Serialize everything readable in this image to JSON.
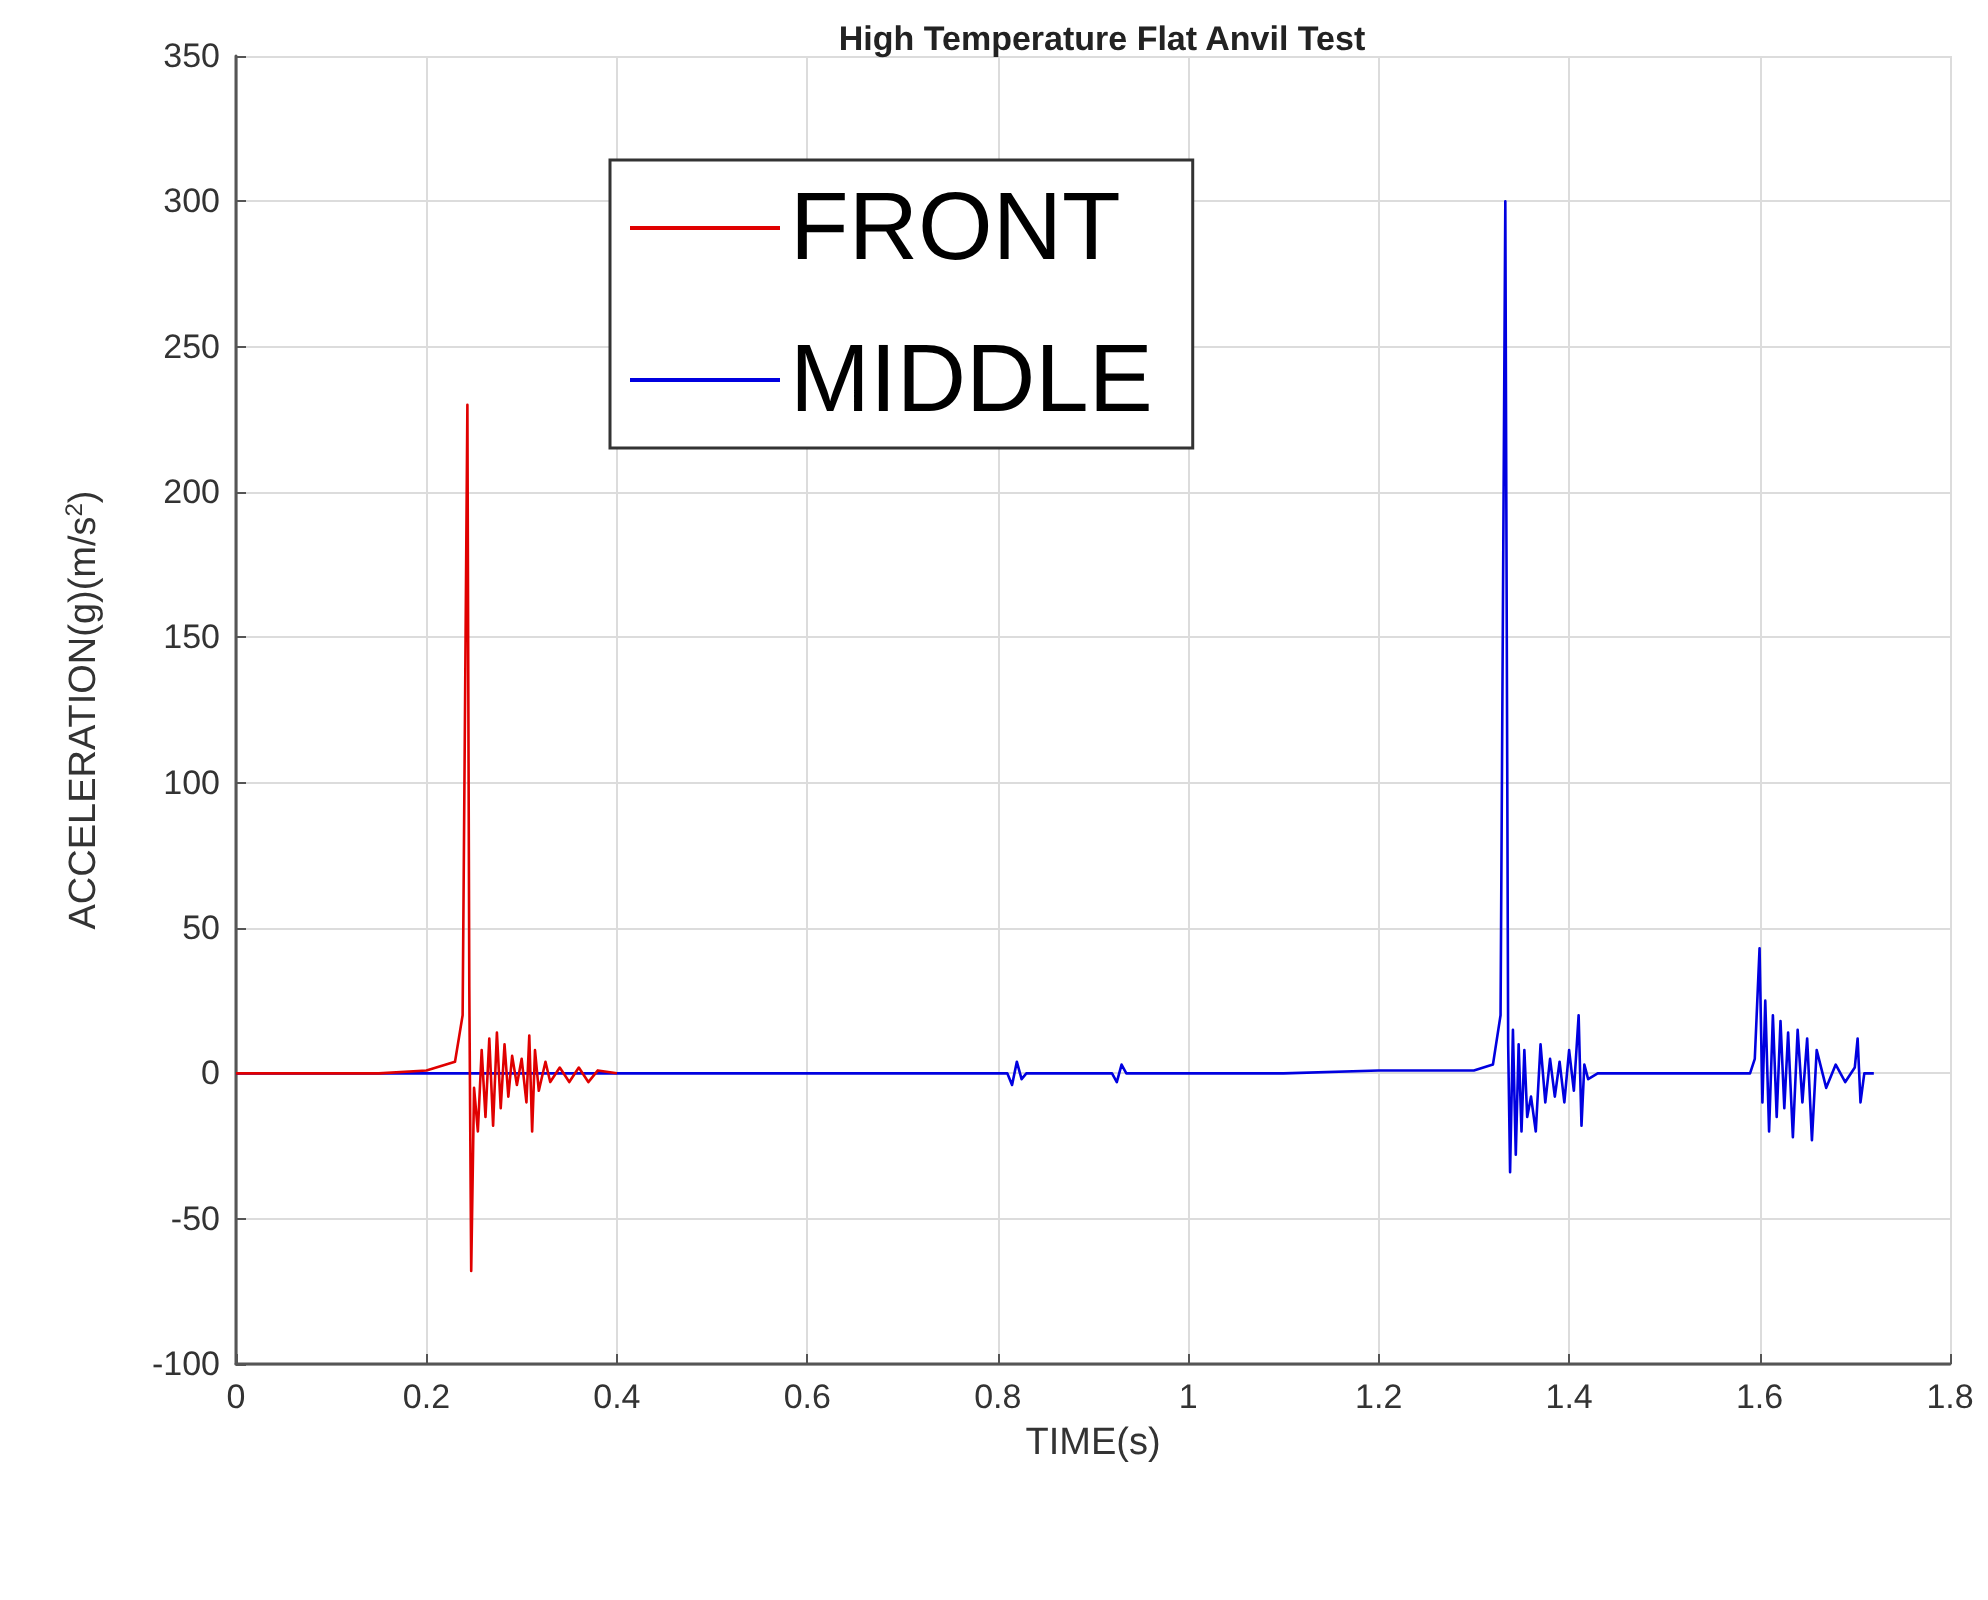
{
  "chart_data": {
    "type": "line",
    "title": "High Temperature Flat Anvil Test",
    "xlabel": "TIME(s)",
    "ylabel": "ACCELERATION(g)(m/s$^{2}$)",
    "xlim": [
      0,
      1.8
    ],
    "xticks": [
      0,
      0.2,
      0.4,
      0.6,
      0.8,
      1,
      1.2,
      1.4,
      1.6,
      1.8
    ],
    "ylim": [
      -100,
      350
    ],
    "yticks": [
      -100,
      -50,
      0,
      50,
      100,
      150,
      200,
      250,
      300,
      350
    ],
    "grid": true,
    "legend": "top",
    "marker": "none",
    "line_style": "solid",
    "series": [
      {
        "name": "MIDDLE",
        "color": "#0000e0",
        "x": [
          0,
          0.1,
          0.3,
          0.5,
          0.7,
          0.81,
          0.815,
          0.82,
          0.825,
          0.83,
          0.92,
          0.925,
          0.93,
          0.935,
          1.0,
          1.1,
          1.2,
          1.3,
          1.32,
          1.328,
          1.333,
          1.336,
          1.338,
          1.341,
          1.344,
          1.347,
          1.35,
          1.353,
          1.356,
          1.36,
          1.365,
          1.37,
          1.375,
          1.38,
          1.385,
          1.39,
          1.395,
          1.4,
          1.405,
          1.41,
          1.413,
          1.416,
          1.42,
          1.43,
          1.5,
          1.59,
          1.595,
          1.6,
          1.603,
          1.606,
          1.61,
          1.614,
          1.618,
          1.622,
          1.626,
          1.63,
          1.635,
          1.64,
          1.645,
          1.65,
          1.655,
          1.66,
          1.67,
          1.68,
          1.69,
          1.7,
          1.703,
          1.706,
          1.71,
          1.72
        ],
        "values": [
          0,
          0,
          0,
          0,
          0,
          0,
          -4,
          4,
          -2,
          0,
          0,
          -3,
          3,
          0,
          0,
          0,
          1,
          1,
          3,
          20,
          300,
          10,
          -34,
          15,
          -28,
          10,
          -20,
          8,
          -15,
          -8,
          -20,
          10,
          -10,
          5,
          -8,
          4,
          -10,
          8,
          -6,
          20,
          -18,
          3,
          -2,
          0,
          0,
          0,
          5,
          43,
          -10,
          25,
          -20,
          20,
          -15,
          18,
          -12,
          14,
          -22,
          15,
          -10,
          12,
          -23,
          8,
          -5,
          3,
          -3,
          2,
          12,
          -10,
          0,
          0
        ]
      },
      {
        "name": "FRONT",
        "color": "#e00000",
        "x": [
          0,
          0.05,
          0.1,
          0.15,
          0.2,
          0.23,
          0.238,
          0.243,
          0.245,
          0.247,
          0.25,
          0.254,
          0.258,
          0.262,
          0.266,
          0.27,
          0.274,
          0.278,
          0.282,
          0.286,
          0.29,
          0.295,
          0.3,
          0.305,
          0.308,
          0.311,
          0.314,
          0.318,
          0.325,
          0.33,
          0.34,
          0.35,
          0.36,
          0.37,
          0.38,
          0.4
        ],
        "values": [
          0,
          0,
          0,
          0,
          1,
          4,
          20,
          230,
          30,
          -68,
          -5,
          -20,
          8,
          -15,
          12,
          -18,
          14,
          -12,
          10,
          -8,
          6,
          -4,
          5,
          -10,
          13,
          -20,
          8,
          -6,
          4,
          -3,
          2,
          -3,
          2,
          -3,
          1,
          0
        ]
      }
    ]
  }
}
